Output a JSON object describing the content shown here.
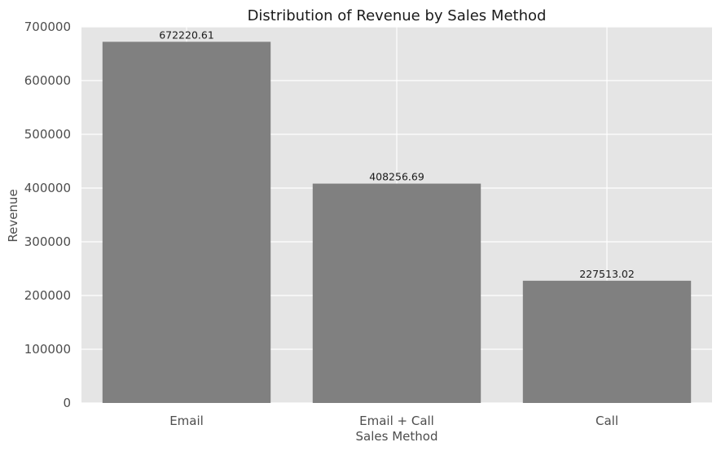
{
  "colors": {
    "plot_background": "#e5e5e5",
    "grid": "#ffffff",
    "bar": "#808080"
  },
  "chart_data": {
    "type": "bar",
    "title": "Distribution of Revenue by Sales Method",
    "xlabel": "Sales Method",
    "ylabel": "Revenue",
    "categories": [
      "Email",
      "Email + Call",
      "Call"
    ],
    "values": [
      672220.61,
      408256.69,
      227513.02
    ],
    "data_labels": [
      "672220.61",
      "408256.69",
      "227513.02"
    ],
    "ylim": [
      0,
      700000
    ],
    "yticks": [
      0,
      100000,
      200000,
      300000,
      400000,
      500000,
      600000,
      700000
    ],
    "ytick_labels": [
      "0",
      "100000",
      "200000",
      "300000",
      "400000",
      "500000",
      "600000",
      "700000"
    ],
    "grid": true,
    "legend": "none"
  }
}
